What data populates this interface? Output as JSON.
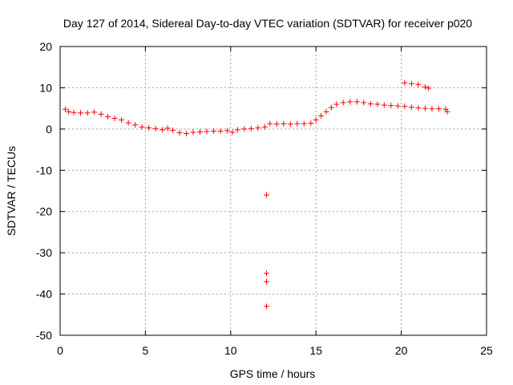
{
  "chart_data": {
    "type": "scatter",
    "title": "Day 127 of 2014, Sidereal Day-to-day VTEC variation (SDTVAR) for receiver p020",
    "xlabel": "GPS time / hours",
    "ylabel": "SDTVAR / TECUs",
    "xlim": [
      0,
      25
    ],
    "ylim": [
      -50,
      20
    ],
    "xticks": [
      "0",
      "5",
      "10",
      "15",
      "20",
      "25"
    ],
    "yticks": [
      "20",
      "10",
      "0",
      "-10",
      "-20",
      "-30",
      "-40",
      "-50"
    ],
    "grid": true,
    "marker": "+",
    "color": "#ff0000",
    "series": [
      {
        "name": "SDTVAR",
        "points": [
          [
            0.3,
            4.8
          ],
          [
            0.5,
            4.2
          ],
          [
            0.8,
            4.0
          ],
          [
            1.2,
            3.9
          ],
          [
            1.6,
            3.9
          ],
          [
            2.0,
            4.1
          ],
          [
            2.4,
            3.6
          ],
          [
            2.8,
            3.0
          ],
          [
            3.2,
            2.6
          ],
          [
            3.6,
            2.2
          ],
          [
            4.0,
            1.5
          ],
          [
            4.4,
            1.0
          ],
          [
            4.8,
            0.5
          ],
          [
            5.2,
            0.3
          ],
          [
            5.6,
            0.1
          ],
          [
            6.0,
            -0.2
          ],
          [
            6.3,
            0.2
          ],
          [
            6.6,
            -0.3
          ],
          [
            7.0,
            -0.9
          ],
          [
            7.4,
            -1.1
          ],
          [
            7.8,
            -0.8
          ],
          [
            8.2,
            -0.7
          ],
          [
            8.6,
            -0.6
          ],
          [
            9.0,
            -0.5
          ],
          [
            9.4,
            -0.5
          ],
          [
            9.8,
            -0.4
          ],
          [
            10.1,
            -0.8
          ],
          [
            10.4,
            -0.2
          ],
          [
            10.8,
            0.0
          ],
          [
            11.2,
            0.1
          ],
          [
            11.6,
            0.3
          ],
          [
            12.0,
            0.5
          ],
          [
            12.3,
            1.3
          ],
          [
            12.7,
            1.2
          ],
          [
            13.1,
            1.3
          ],
          [
            13.5,
            1.2
          ],
          [
            13.9,
            1.3
          ],
          [
            14.3,
            1.3
          ],
          [
            14.7,
            1.4
          ],
          [
            15.0,
            2.2
          ],
          [
            15.3,
            3.2
          ],
          [
            15.6,
            4.2
          ],
          [
            15.9,
            5.2
          ],
          [
            16.2,
            6.0
          ],
          [
            16.6,
            6.4
          ],
          [
            17.0,
            6.6
          ],
          [
            17.4,
            6.6
          ],
          [
            17.8,
            6.4
          ],
          [
            18.2,
            6.1
          ],
          [
            18.6,
            6.0
          ],
          [
            19.0,
            5.8
          ],
          [
            19.4,
            5.7
          ],
          [
            19.8,
            5.6
          ],
          [
            20.2,
            5.5
          ],
          [
            20.6,
            5.3
          ],
          [
            21.0,
            5.1
          ],
          [
            21.4,
            5.0
          ],
          [
            21.8,
            4.9
          ],
          [
            22.2,
            4.9
          ],
          [
            22.6,
            4.8
          ],
          [
            22.7,
            4.2
          ],
          [
            20.2,
            11.2
          ],
          [
            20.6,
            11.0
          ],
          [
            21.0,
            10.8
          ],
          [
            21.4,
            10.2
          ],
          [
            21.6,
            9.9
          ],
          [
            12.1,
            -16.0
          ],
          [
            12.1,
            -35.0
          ],
          [
            12.1,
            -37.0
          ],
          [
            12.1,
            -43.0
          ]
        ]
      }
    ]
  }
}
